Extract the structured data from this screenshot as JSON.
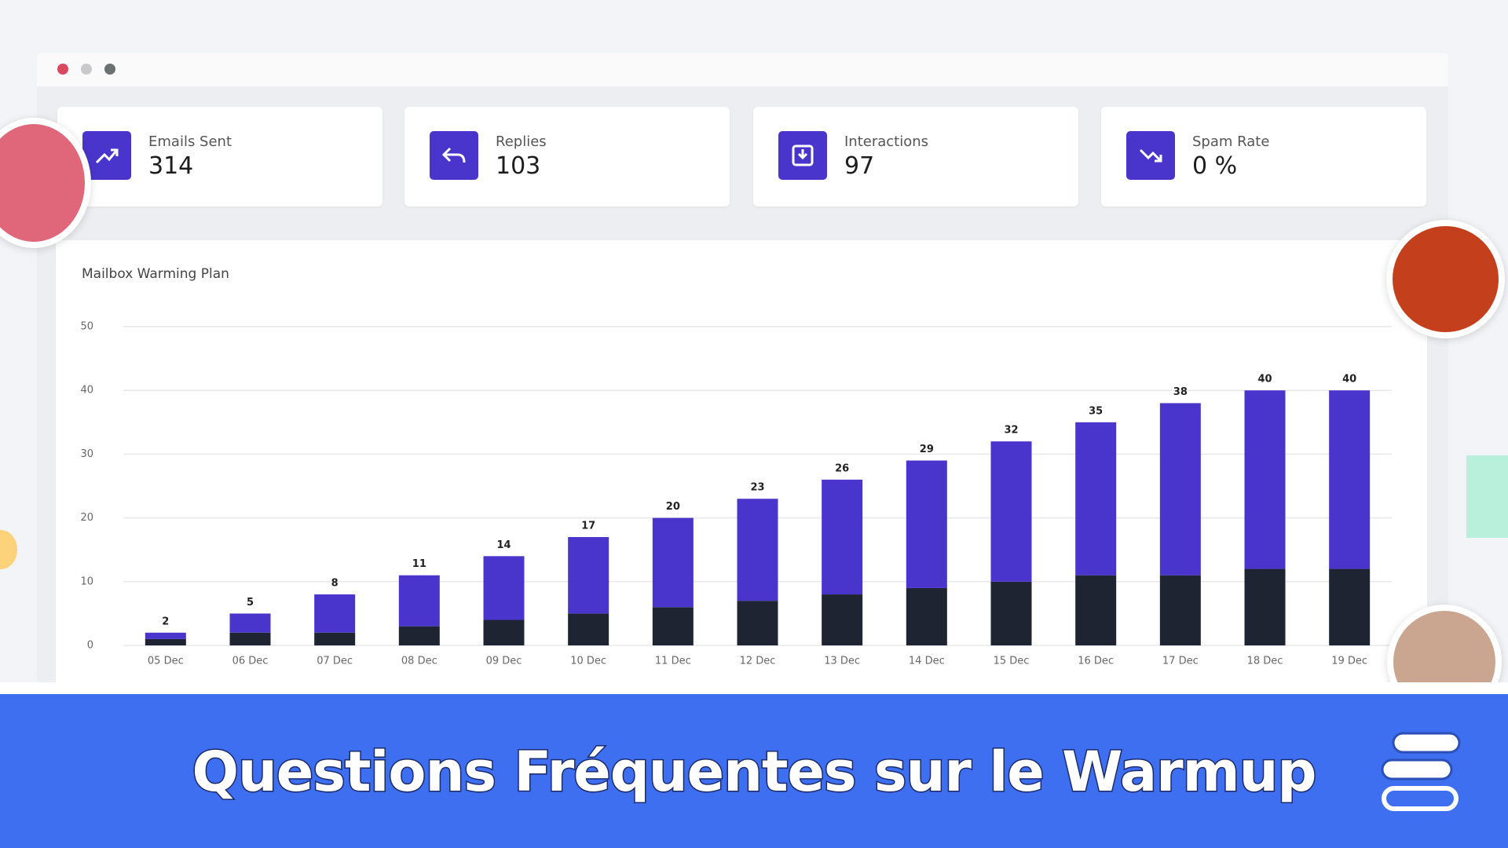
{
  "cards": [
    {
      "label": "Emails Sent",
      "value": 314
    },
    {
      "label": "Replies",
      "value": 103
    },
    {
      "label": "Interactions",
      "value": 97
    },
    {
      "label": "Spam Rate",
      "value": "0 %"
    }
  ],
  "chart_data": {
    "type": "stacked-bar",
    "title": "Mailbox Warming Plan",
    "categories": [
      "05 Dec",
      "06 Dec",
      "07 Dec",
      "08 Dec",
      "09 Dec",
      "10 Dec",
      "11 Dec",
      "12 Dec",
      "13 Dec",
      "14 Dec",
      "15 Dec",
      "16 Dec",
      "17 Dec",
      "18 Dec",
      "19 Dec"
    ],
    "series": [
      {
        "color": "#1f2433",
        "values": [
          1,
          2,
          2,
          3,
          4,
          5,
          6,
          7,
          8,
          9,
          10,
          11,
          11,
          12,
          12
        ]
      },
      {
        "color": "#4a35cc",
        "values": [
          1,
          3,
          6,
          8,
          10,
          12,
          14,
          16,
          18,
          20,
          22,
          24,
          27,
          28,
          28
        ]
      }
    ],
    "totals": [
      2,
      5,
      8,
      11,
      14,
      17,
      20,
      23,
      26,
      29,
      32,
      35,
      38,
      40,
      40
    ],
    "ylim": [
      0,
      50
    ],
    "yticks": [
      0,
      10,
      20,
      30,
      40,
      50
    ],
    "grid": true
  },
  "banner": {
    "title": "Questions Fréquentes sur le Warmup"
  }
}
